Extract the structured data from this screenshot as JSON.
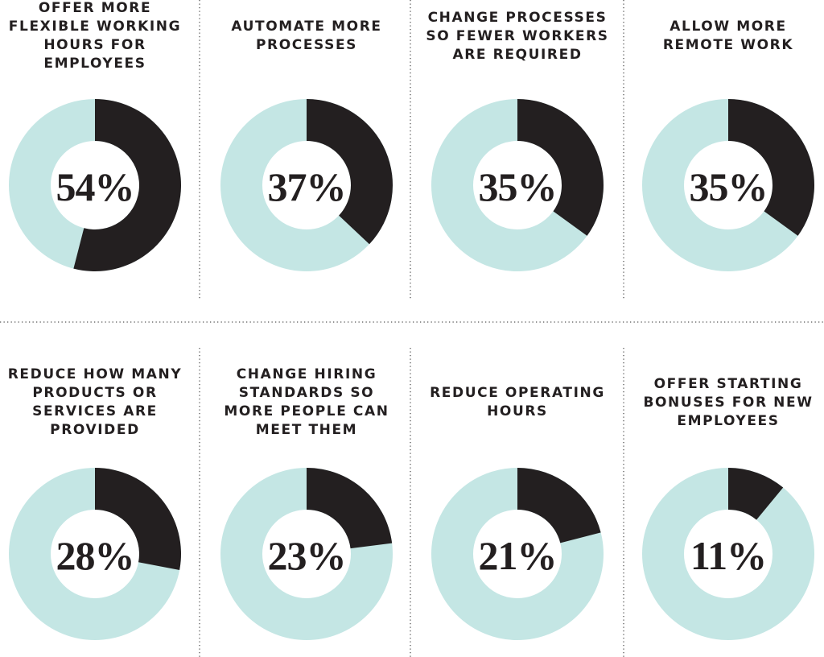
{
  "chart_data": [
    {
      "type": "donut",
      "title": "OFFER MORE FLEXIBLE WORKING HOURS FOR EMPLOYEES",
      "values": [
        54
      ],
      "value_labels": [
        "54%"
      ],
      "color": "#231f20",
      "track_color": "#c4e6e4"
    },
    {
      "type": "donut",
      "title": "AUTOMATE MORE PROCESSES",
      "values": [
        37
      ],
      "value_labels": [
        "37%"
      ],
      "color": "#231f20",
      "track_color": "#c4e6e4"
    },
    {
      "type": "donut",
      "title": "CHANGE PROCESSES SO FEWER WORKERS ARE REQUIRED",
      "values": [
        35
      ],
      "value_labels": [
        "35%"
      ],
      "color": "#231f20",
      "track_color": "#c4e6e4"
    },
    {
      "type": "donut",
      "title": "ALLOW MORE REMOTE WORK",
      "values": [
        35
      ],
      "value_labels": [
        "35%"
      ],
      "color": "#231f20",
      "track_color": "#c4e6e4"
    },
    {
      "type": "donut",
      "title": "REDUCE HOW MANY PRODUCTS OR SERVICES ARE PROVIDED",
      "values": [
        28
      ],
      "value_labels": [
        "28%"
      ],
      "color": "#231f20",
      "track_color": "#c4e6e4"
    },
    {
      "type": "donut",
      "title": "CHANGE HIRING STANDARDS SO MORE PEOPLE CAN MEET THEM",
      "values": [
        23
      ],
      "value_labels": [
        "23%"
      ],
      "color": "#231f20",
      "track_color": "#c4e6e4"
    },
    {
      "type": "donut",
      "title": "REDUCE OPERATING HOURS",
      "values": [
        21
      ],
      "value_labels": [
        "21%"
      ],
      "color": "#231f20",
      "track_color": "#c4e6e4"
    },
    {
      "type": "donut",
      "title": "OFFER STARTING BONUSES FOR NEW EMPLOYEES",
      "values": [
        11
      ],
      "value_labels": [
        "11%"
      ],
      "color": "#231f20",
      "track_color": "#c4e6e4"
    }
  ]
}
